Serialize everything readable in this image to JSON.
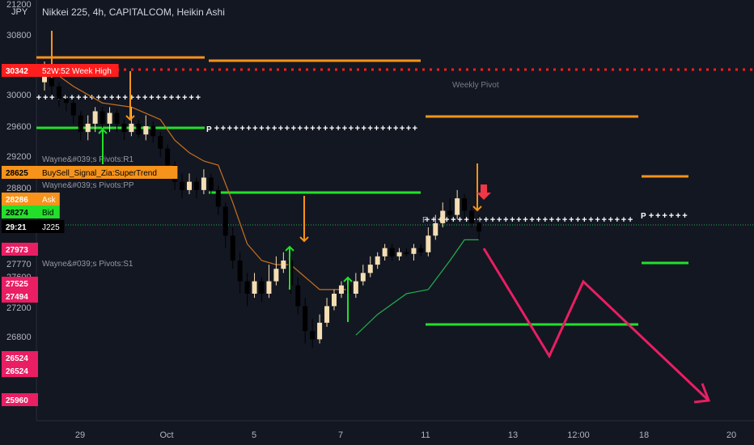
{
  "chart_title": "Nikkei 225, 4h, CAPITALCOM, Heikin Ashi",
  "currency": "JPY",
  "colors": {
    "background": "#131722",
    "bull": "#f5deb3",
    "bear": "#000000",
    "orange": "#f7931a",
    "green": "#22e02a",
    "red_dotted": "#ff1e1e",
    "pink": "#e91e63",
    "white": "#ffffff",
    "supertrend_orange": "#c8711c",
    "supertrend_green": "#22b14c"
  },
  "price_ticks": [
    "21200",
    "30800",
    "30000",
    "29600",
    "29200",
    "28800",
    "27770",
    "27600",
    "27200",
    "26800"
  ],
  "date_ticks": [
    "29",
    "Oct",
    "5",
    "7",
    "11",
    "13",
    "12:00",
    "18",
    "20"
  ],
  "tags": [
    {
      "label": "30342",
      "note": "52W:52 Week High",
      "color": "#ff1e1e",
      "text": "#ffffff"
    },
    {
      "label": "28625",
      "note": "BuySell_Signal_Zia:SuperTrend",
      "color": "#f7931a",
      "text": "#000000"
    },
    {
      "label": "28286",
      "note": "Ask",
      "color": "#f7931a",
      "text": "#ffffff"
    },
    {
      "label": "28274",
      "note": "Bid",
      "color": "#22e02a",
      "text": "#000000"
    },
    {
      "label": "29:21",
      "note": "J225",
      "color": "#000000",
      "text": "#ffffff"
    },
    {
      "label": "27973",
      "note": "",
      "color": "#e91e63",
      "text": "#ffffff"
    },
    {
      "label": "27525",
      "note": "",
      "color": "#e91e63",
      "text": "#ffffff"
    },
    {
      "label": "27494",
      "note": "",
      "color": "#e91e63",
      "text": "#ffffff"
    },
    {
      "label": "26524",
      "note": "",
      "color": "#e91e63",
      "text": "#ffffff"
    },
    {
      "label": "26524",
      "note": "",
      "color": "#e91e63",
      "text": "#ffffff"
    },
    {
      "label": "25960",
      "note": "",
      "color": "#e91e63",
      "text": "#ffffff"
    }
  ],
  "annotations": {
    "r1": "Wayne&#039;s Pivots:R1",
    "pp": "Wayne&#039;s Pivots:PP",
    "s1": "Wayne&#039;s Pivots:S1",
    "weekly_pivot": "Weekly Pivot",
    "p1": "P",
    "p2": "P",
    "p3": "P"
  },
  "chart_data": {
    "type": "candlestick",
    "style": "Heikin Ashi",
    "symbol": "Nikkei 225",
    "interval": "4h",
    "source": "CAPITALCOM",
    "candles": [
      {
        "o": 30150,
        "c": 30250,
        "h": 30400,
        "l": 30050
      },
      {
        "o": 30200,
        "c": 30100,
        "h": 30350,
        "l": 30000
      },
      {
        "o": 30100,
        "c": 29950,
        "h": 30150,
        "l": 29850
      },
      {
        "o": 29950,
        "c": 29900,
        "h": 30000,
        "l": 29800
      },
      {
        "o": 29900,
        "c": 29750,
        "h": 29950,
        "l": 29650
      },
      {
        "o": 29750,
        "c": 29550,
        "h": 29800,
        "l": 29450
      },
      {
        "o": 29550,
        "c": 29650,
        "h": 29750,
        "l": 29450
      },
      {
        "o": 29650,
        "c": 29800,
        "h": 29850,
        "l": 29550
      },
      {
        "o": 29800,
        "c": 29650,
        "h": 29850,
        "l": 29600
      },
      {
        "o": 29650,
        "c": 29780,
        "h": 29850,
        "l": 29550
      },
      {
        "o": 29780,
        "c": 29650,
        "h": 29820,
        "l": 29550
      },
      {
        "o": 29650,
        "c": 29550,
        "h": 29700,
        "l": 29450
      },
      {
        "o": 29550,
        "c": 29650,
        "h": 29850,
        "l": 29500
      },
      {
        "o": 29650,
        "c": 29520,
        "h": 29700,
        "l": 29480
      },
      {
        "o": 29520,
        "c": 29620,
        "h": 29750,
        "l": 29450
      },
      {
        "o": 29620,
        "c": 29500,
        "h": 29680,
        "l": 29420
      },
      {
        "o": 29500,
        "c": 29350,
        "h": 29550,
        "l": 29250
      },
      {
        "o": 29350,
        "c": 29150,
        "h": 29400,
        "l": 29050
      },
      {
        "o": 29150,
        "c": 28950,
        "h": 29200,
        "l": 28850
      },
      {
        "o": 28950,
        "c": 28850,
        "h": 29050,
        "l": 28750
      },
      {
        "o": 28850,
        "c": 28950,
        "h": 29050,
        "l": 28800
      },
      {
        "o": 28950,
        "c": 28850,
        "h": 29000,
        "l": 28750
      },
      {
        "o": 28850,
        "c": 29000,
        "h": 29100,
        "l": 28800
      },
      {
        "o": 29000,
        "c": 28850,
        "h": 29050,
        "l": 28800
      },
      {
        "o": 28850,
        "c": 28650,
        "h": 28900,
        "l": 28550
      },
      {
        "o": 28650,
        "c": 28300,
        "h": 28700,
        "l": 28150
      },
      {
        "o": 28300,
        "c": 28000,
        "h": 28400,
        "l": 27900
      },
      {
        "o": 28000,
        "c": 27750,
        "h": 28100,
        "l": 27600
      },
      {
        "o": 27750,
        "c": 27600,
        "h": 27850,
        "l": 27450
      },
      {
        "o": 27600,
        "c": 27750,
        "h": 27850,
        "l": 27550
      },
      {
        "o": 27750,
        "c": 27600,
        "h": 27800,
        "l": 27500
      },
      {
        "o": 27600,
        "c": 27750,
        "h": 27950,
        "l": 27550
      },
      {
        "o": 27750,
        "c": 27900,
        "h": 28050,
        "l": 27700
      },
      {
        "o": 27900,
        "c": 28000,
        "h": 28100,
        "l": 27850
      },
      {
        "o": 28000,
        "c": 27700,
        "h": 28050,
        "l": 27600
      },
      {
        "o": 27700,
        "c": 27450,
        "h": 27800,
        "l": 27350
      },
      {
        "o": 27450,
        "c": 27150,
        "h": 27550,
        "l": 27000
      },
      {
        "o": 27150,
        "c": 27050,
        "h": 27300,
        "l": 26950
      },
      {
        "o": 27050,
        "c": 27250,
        "h": 27350,
        "l": 27000
      },
      {
        "o": 27250,
        "c": 27450,
        "h": 27550,
        "l": 27200
      },
      {
        "o": 27450,
        "c": 27600,
        "h": 27650,
        "l": 27400
      },
      {
        "o": 27600,
        "c": 27700,
        "h": 27750,
        "l": 27550
      },
      {
        "o": 27700,
        "c": 27600,
        "h": 27750,
        "l": 27500
      },
      {
        "o": 27600,
        "c": 27750,
        "h": 27850,
        "l": 27550
      },
      {
        "o": 27750,
        "c": 27850,
        "h": 27950,
        "l": 27700
      },
      {
        "o": 27850,
        "c": 27950,
        "h": 28050,
        "l": 27800
      },
      {
        "o": 27950,
        "c": 28050,
        "h": 28100,
        "l": 27900
      },
      {
        "o": 28050,
        "c": 28150,
        "h": 28200,
        "l": 28000
      },
      {
        "o": 28150,
        "c": 28050,
        "h": 28200,
        "l": 28000
      },
      {
        "o": 28050,
        "c": 28100,
        "h": 28150,
        "l": 28000
      },
      {
        "o": 28100,
        "c": 28080,
        "h": 28150,
        "l": 28050
      },
      {
        "o": 28080,
        "c": 28150,
        "h": 28200,
        "l": 28000
      },
      {
        "o": 28150,
        "c": 28100,
        "h": 28200,
        "l": 28050
      },
      {
        "o": 28100,
        "c": 28300,
        "h": 28400,
        "l": 28050
      },
      {
        "o": 28300,
        "c": 28450,
        "h": 28550,
        "l": 28250
      },
      {
        "o": 28450,
        "c": 28600,
        "h": 28700,
        "l": 28400
      },
      {
        "o": 28600,
        "c": 28550,
        "h": 28750,
        "l": 28450
      },
      {
        "o": 28550,
        "c": 28750,
        "h": 28850,
        "l": 28500
      },
      {
        "o": 28750,
        "c": 28600,
        "h": 28800,
        "l": 28500
      },
      {
        "o": 28600,
        "c": 28450,
        "h": 28650,
        "l": 28400
      },
      {
        "o": 28450,
        "c": 28350,
        "h": 28550,
        "l": 28250
      }
    ],
    "supertrend": [
      {
        "i": 0,
        "v": 30350
      },
      {
        "i": 4,
        "v": 30100
      },
      {
        "i": 8,
        "v": 29900
      },
      {
        "i": 12,
        "v": 29850
      },
      {
        "i": 16,
        "v": 29700
      },
      {
        "i": 18,
        "v": 29450
      },
      {
        "i": 20,
        "v": 29300
      },
      {
        "i": 22,
        "v": 29200
      },
      {
        "i": 24,
        "v": 29150
      },
      {
        "i": 26,
        "v": 28700
      },
      {
        "i": 28,
        "v": 28200
      },
      {
        "i": 30,
        "v": 28000
      },
      {
        "i": 32,
        "v": 27950
      },
      {
        "i": 34,
        "v": 27950
      },
      {
        "i": 36,
        "v": 27800
      },
      {
        "i": 38,
        "v": 27650
      },
      {
        "i": 42,
        "v": 27650
      }
    ],
    "supertrend_up": [
      {
        "i": 43,
        "v": 27100
      },
      {
        "i": 46,
        "v": 27350
      },
      {
        "i": 50,
        "v": 27600
      },
      {
        "i": 53,
        "v": 27650
      },
      {
        "i": 56,
        "v": 28000
      },
      {
        "i": 58,
        "v": 28250
      },
      {
        "i": 60,
        "v": 28250
      }
    ],
    "levels": {
      "high_52w": 30342,
      "weekly_pivot": 28274
    }
  }
}
